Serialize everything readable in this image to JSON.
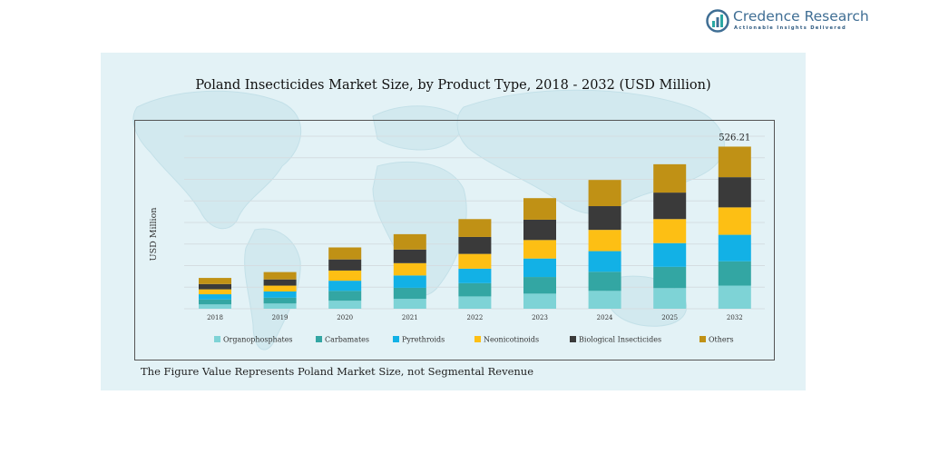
{
  "brand": {
    "name": "Credence Research",
    "tagline": "Actionable Insights Delivered",
    "icon": "credence-logo-icon"
  },
  "footnote": "The Figure Value Represents Poland Market Size, not Segmental Revenue",
  "chart_data": {
    "type": "bar",
    "stacked": true,
    "title": "Poland Insecticides Market Size, by Product Type, 2018  -  2032 (USD Million)",
    "xlabel": "",
    "ylabel": "USD Million",
    "ylim": [
      0,
      560
    ],
    "grid": true,
    "legend_position": "bottom",
    "categories": [
      "2018",
      "2019",
      "2020",
      "2021",
      "2022",
      "2023",
      "2024",
      "2025",
      "2032"
    ],
    "series": [
      {
        "name": "Organophosphates",
        "color": "#7ed3d6",
        "values": [
          14,
          17,
          26,
          32,
          40,
          49,
          58,
          67,
          75
        ]
      },
      {
        "name": "Carbamates",
        "color": "#33a6a3",
        "values": [
          16,
          19,
          32,
          36,
          43,
          54,
          62,
          69,
          79
        ]
      },
      {
        "name": "Pyrethroids",
        "color": "#12b1e6",
        "values": [
          17,
          20,
          33,
          40,
          47,
          60,
          67,
          77,
          86
        ]
      },
      {
        "name": "Neonicotinoids",
        "color": "#fdbf14",
        "values": [
          16,
          19,
          33,
          40,
          48,
          60,
          69,
          78,
          89
        ]
      },
      {
        "name": "Biological Insecticides",
        "color": "#3a3a3a",
        "values": [
          17,
          20,
          36,
          44,
          55,
          66,
          77,
          86,
          98
        ]
      },
      {
        "name": "Others",
        "color": "#c09115",
        "values": [
          20,
          24,
          39,
          50,
          58,
          70,
          85,
          92,
          99.21
        ]
      }
    ],
    "annotations": [
      {
        "category": "2032",
        "text": "526.21"
      }
    ]
  }
}
